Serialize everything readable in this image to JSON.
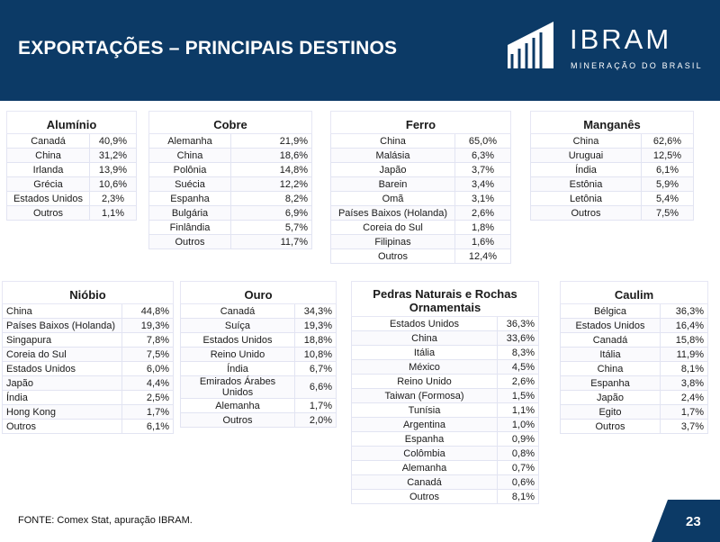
{
  "header": {
    "title": "EXPORTAÇÕES – PRINCIPAIS DESTINOS",
    "logo_word": "IBRAM",
    "logo_sub": "MINERAÇÃO DO BRASIL"
  },
  "colors": {
    "navy": "#0c3a66",
    "row_border": "#e2e4f2"
  },
  "tables": {
    "aluminio": {
      "title": "Alumínio",
      "rows": [
        [
          "Canadá",
          "40,9%"
        ],
        [
          "China",
          "31,2%"
        ],
        [
          "Irlanda",
          "13,9%"
        ],
        [
          "Grécia",
          "10,6%"
        ],
        [
          "Estados Unidos",
          "2,3%"
        ],
        [
          "Outros",
          "1,1%"
        ]
      ]
    },
    "cobre": {
      "title": "Cobre",
      "rows": [
        [
          "Alemanha",
          "21,9%"
        ],
        [
          "China",
          "18,6%"
        ],
        [
          "Polônia",
          "14,8%"
        ],
        [
          "Suécia",
          "12,2%"
        ],
        [
          "Espanha",
          "8,2%"
        ],
        [
          "Bulgária",
          "6,9%"
        ],
        [
          "Finlândia",
          "5,7%"
        ],
        [
          "Outros",
          "11,7%"
        ]
      ]
    },
    "ferro": {
      "title": "Ferro",
      "rows": [
        [
          "China",
          "65,0%"
        ],
        [
          "Malásia",
          "6,3%"
        ],
        [
          "Japão",
          "3,7%"
        ],
        [
          "Barein",
          "3,4%"
        ],
        [
          "Omã",
          "3,1%"
        ],
        [
          "Países Baixos (Holanda)",
          "2,6%"
        ],
        [
          "Coreia do Sul",
          "1,8%"
        ],
        [
          "Filipinas",
          "1,6%"
        ],
        [
          "Outros",
          "12,4%"
        ]
      ]
    },
    "manganes": {
      "title": "Manganês",
      "rows": [
        [
          "China",
          "62,6%"
        ],
        [
          "Uruguai",
          "12,5%"
        ],
        [
          "Índia",
          "6,1%"
        ],
        [
          "Estônia",
          "5,9%"
        ],
        [
          "Letônia",
          "5,4%"
        ],
        [
          "Outros",
          "7,5%"
        ]
      ]
    },
    "niobio": {
      "title": "Nióbio",
      "rows": [
        [
          "China",
          "44,8%"
        ],
        [
          "Países Baixos (Holanda)",
          "19,3%"
        ],
        [
          "Singapura",
          "7,8%"
        ],
        [
          "Coreia do Sul",
          "7,5%"
        ],
        [
          "Estados Unidos",
          "6,0%"
        ],
        [
          "Japão",
          "4,4%"
        ],
        [
          "Índia",
          "2,5%"
        ],
        [
          "Hong Kong",
          "1,7%"
        ],
        [
          "Outros",
          "6,1%"
        ]
      ]
    },
    "ouro": {
      "title": "Ouro",
      "rows": [
        [
          "Canadá",
          "34,3%"
        ],
        [
          "Suíça",
          "19,3%"
        ],
        [
          "Estados Unidos",
          "18,8%"
        ],
        [
          "Reino Unido",
          "10,8%"
        ],
        [
          "Índia",
          "6,7%"
        ],
        [
          "Emirados Árabes Unidos",
          "6,6%"
        ],
        [
          "Alemanha",
          "1,7%"
        ],
        [
          "Outros",
          "2,0%"
        ]
      ]
    },
    "pedras": {
      "title": "Pedras Naturais e Rochas Ornamentais",
      "rows": [
        [
          "Estados Unidos",
          "36,3%"
        ],
        [
          "China",
          "33,6%"
        ],
        [
          "Itália",
          "8,3%"
        ],
        [
          "México",
          "4,5%"
        ],
        [
          "Reino Unido",
          "2,6%"
        ],
        [
          "Taiwan (Formosa)",
          "1,5%"
        ],
        [
          "Tunísia",
          "1,1%"
        ],
        [
          "Argentina",
          "1,0%"
        ],
        [
          "Espanha",
          "0,9%"
        ],
        [
          "Colômbia",
          "0,8%"
        ],
        [
          "Alemanha",
          "0,7%"
        ],
        [
          "Canadá",
          "0,6%"
        ],
        [
          "Outros",
          "8,1%"
        ]
      ]
    },
    "caulim": {
      "title": "Caulim",
      "rows": [
        [
          "Bélgica",
          "36,3%"
        ],
        [
          "Estados Unidos",
          "16,4%"
        ],
        [
          "Canadá",
          "15,8%"
        ],
        [
          "Itália",
          "11,9%"
        ],
        [
          "China",
          "8,1%"
        ],
        [
          "Espanha",
          "3,8%"
        ],
        [
          "Japão",
          "2,4%"
        ],
        [
          "Egito",
          "1,7%"
        ],
        [
          "Outros",
          "3,7%"
        ]
      ]
    }
  },
  "footer": {
    "source": "FONTE: Comex Stat, apuração IBRAM.",
    "page": "23"
  }
}
